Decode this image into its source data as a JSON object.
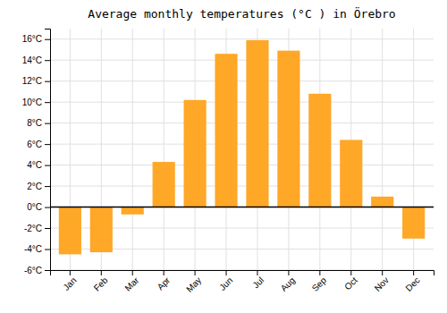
{
  "chart_data": {
    "type": "bar",
    "title": "Average monthly temperatures (°C ) in Örebro",
    "categories": [
      "Jan",
      "Feb",
      "Mar",
      "Apr",
      "May",
      "Jun",
      "Jul",
      "Aug",
      "Sep",
      "Oct",
      "Nov",
      "Dec"
    ],
    "values": [
      -4.5,
      -4.3,
      -0.7,
      4.3,
      10.2,
      14.6,
      15.9,
      14.9,
      10.8,
      6.4,
      1.0,
      -3.0
    ],
    "color": "#FFA726",
    "ylim": [
      -6,
      17
    ],
    "yticks": [
      {
        "value": -6,
        "label": "-6°C"
      },
      {
        "value": -4,
        "label": "-4°C"
      },
      {
        "value": -2,
        "label": "-2°C"
      },
      {
        "value": 0,
        "label": "0°C"
      },
      {
        "value": 2,
        "label": "2°C"
      },
      {
        "value": 4,
        "label": "4°C"
      },
      {
        "value": 6,
        "label": "6°C"
      },
      {
        "value": 8,
        "label": "8°C"
      },
      {
        "value": 10,
        "label": "10°C"
      },
      {
        "value": 12,
        "label": "12°C"
      },
      {
        "value": 14,
        "label": "14°C"
      },
      {
        "value": 16,
        "label": "16°C"
      }
    ],
    "grid": true
  }
}
